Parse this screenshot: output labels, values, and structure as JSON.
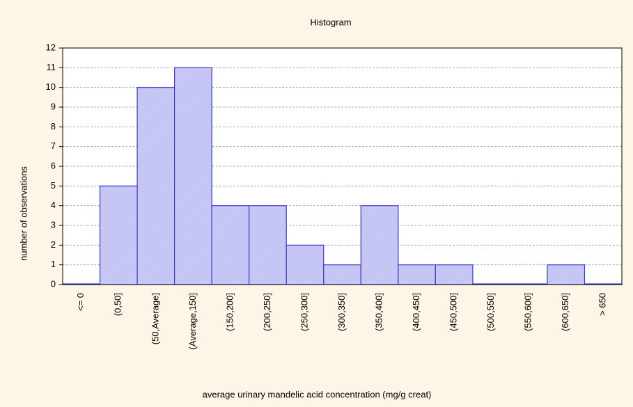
{
  "chart_data": {
    "type": "bar",
    "title": "Histogram",
    "x_label": "average urinary mandelic acid concentration (mg/g creat)",
    "y_label": "number of observations",
    "categories": [
      "<= 0",
      "(0,50]",
      "(50,Average]",
      "(Average,150]",
      "(150,200]",
      "(200,250]",
      "(250,300]",
      "(300,350]",
      "(350,400]",
      "(400,450]",
      "(450,500]",
      "(500,550]",
      "(550,600]",
      "(600,650]",
      "> 650"
    ],
    "values": [
      0,
      5,
      10,
      11,
      4,
      4,
      2,
      1,
      4,
      1,
      1,
      0,
      0,
      1,
      0
    ],
    "color": "#c9c9f5",
    "edge_color": "#3a3acd",
    "ylim": [
      0,
      12
    ],
    "yticks": [
      0,
      1,
      2,
      3,
      4,
      5,
      6,
      7,
      8,
      9,
      10,
      11,
      12
    ],
    "grid": true
  }
}
